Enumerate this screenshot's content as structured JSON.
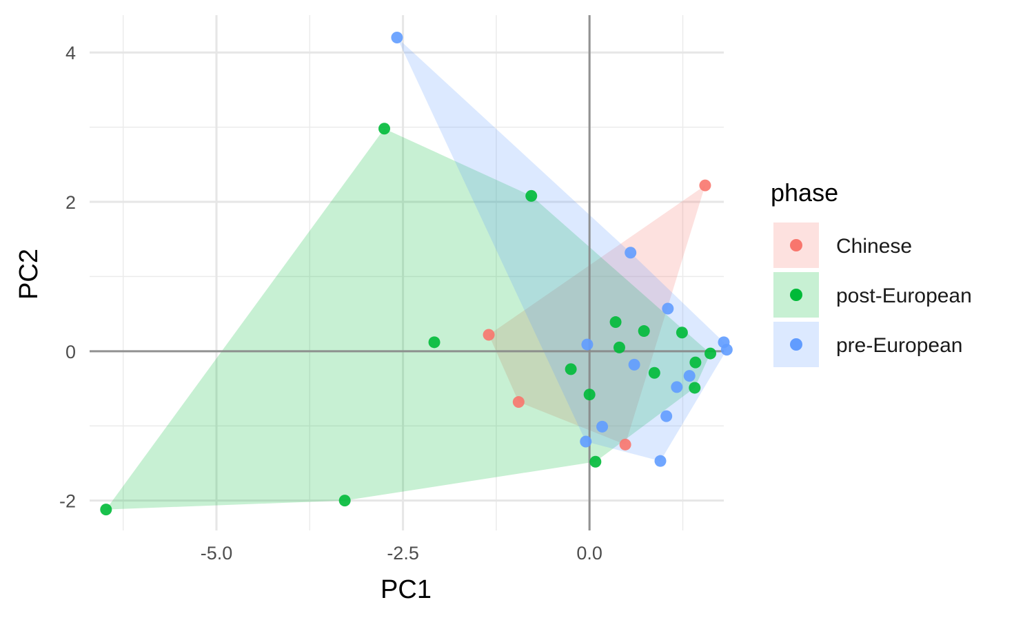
{
  "chart_data": {
    "type": "scatter",
    "title": "",
    "xlabel": "PC1",
    "ylabel": "PC2",
    "xlim": [
      -6.7,
      1.8
    ],
    "ylim": [
      -2.4,
      4.5
    ],
    "xticks": [
      -5.0,
      -2.5,
      0.0
    ],
    "xtick_labels": [
      "-5.0",
      "-2.5",
      "0.0"
    ],
    "xgrid_minor": [
      -6.25,
      -3.75,
      -1.25,
      1.25
    ],
    "yticks": [
      -2,
      0,
      2,
      4
    ],
    "ytick_labels": [
      "-2",
      "0",
      "2",
      "4"
    ],
    "ygrid_minor": [
      -1,
      1,
      3
    ],
    "zero_lines": true,
    "grid": true,
    "hulls": true,
    "legend": {
      "title": "phase",
      "placement": "right"
    },
    "series": [
      {
        "name": "Chinese",
        "color": "#F8766D",
        "points": [
          {
            "x": 1.55,
            "y": 2.22
          },
          {
            "x": -1.35,
            "y": 0.22
          },
          {
            "x": -0.95,
            "y": -0.68
          },
          {
            "x": 0.48,
            "y": -1.25
          }
        ]
      },
      {
        "name": "post-European",
        "color": "#00BA38",
        "points": [
          {
            "x": -2.75,
            "y": 2.98
          },
          {
            "x": -0.78,
            "y": 2.08
          },
          {
            "x": -2.08,
            "y": 0.12
          },
          {
            "x": 0.35,
            "y": 0.39
          },
          {
            "x": 0.73,
            "y": 0.27
          },
          {
            "x": 1.24,
            "y": 0.25
          },
          {
            "x": 0.4,
            "y": 0.05
          },
          {
            "x": 1.62,
            "y": -0.03
          },
          {
            "x": 1.42,
            "y": -0.15
          },
          {
            "x": -0.25,
            "y": -0.24
          },
          {
            "x": 0.87,
            "y": -0.29
          },
          {
            "x": 1.41,
            "y": -0.49
          },
          {
            "x": 0.0,
            "y": -0.58
          },
          {
            "x": 0.08,
            "y": -1.48
          },
          {
            "x": -3.28,
            "y": -2.0
          },
          {
            "x": -6.48,
            "y": -2.12
          }
        ]
      },
      {
        "name": "pre-European",
        "color": "#619CFF",
        "points": [
          {
            "x": -2.58,
            "y": 4.2
          },
          {
            "x": 0.55,
            "y": 1.32
          },
          {
            "x": 1.05,
            "y": 0.57
          },
          {
            "x": 1.8,
            "y": 0.12
          },
          {
            "x": 1.84,
            "y": 0.02
          },
          {
            "x": -0.03,
            "y": 0.09
          },
          {
            "x": 0.6,
            "y": -0.18
          },
          {
            "x": 1.34,
            "y": -0.33
          },
          {
            "x": 1.17,
            "y": -0.48
          },
          {
            "x": 1.03,
            "y": -0.87
          },
          {
            "x": 0.17,
            "y": -1.01
          },
          {
            "x": -0.05,
            "y": -1.21
          },
          {
            "x": 0.95,
            "y": -1.47
          }
        ]
      }
    ]
  }
}
